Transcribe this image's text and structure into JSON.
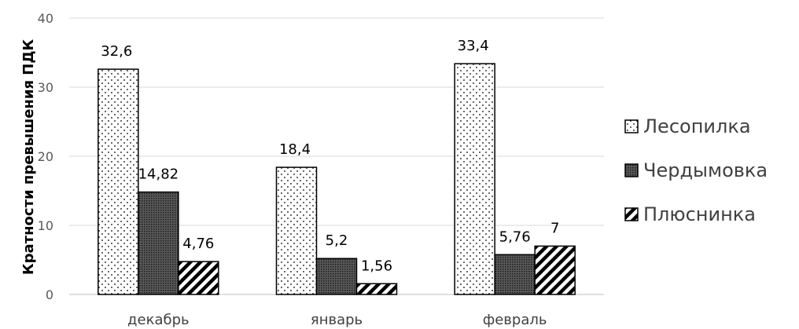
{
  "chart_data": {
    "type": "bar",
    "ylabel": "Кратности превышения ПДК",
    "categories": [
      "декабрь",
      "январь",
      "февраль"
    ],
    "ylim": [
      0,
      40
    ],
    "yticks": [
      0,
      10,
      20,
      30,
      40
    ],
    "grid": true,
    "legend_position": "right",
    "series": [
      {
        "name": "Лесопилка",
        "values": [
          32.6,
          18.4,
          33.4
        ],
        "labels": [
          "32,6",
          "18,4",
          "33,4"
        ],
        "pattern": "dots"
      },
      {
        "name": "Чердымовка",
        "values": [
          14.82,
          5.2,
          5.76
        ],
        "labels": [
          "14,82",
          "5,2",
          "5,76"
        ],
        "pattern": "dense-grid"
      },
      {
        "name": "Плюснинка",
        "values": [
          4.76,
          1.56,
          7
        ],
        "labels": [
          "4,76",
          "1,56",
          "7"
        ],
        "pattern": "diagonal"
      }
    ]
  }
}
